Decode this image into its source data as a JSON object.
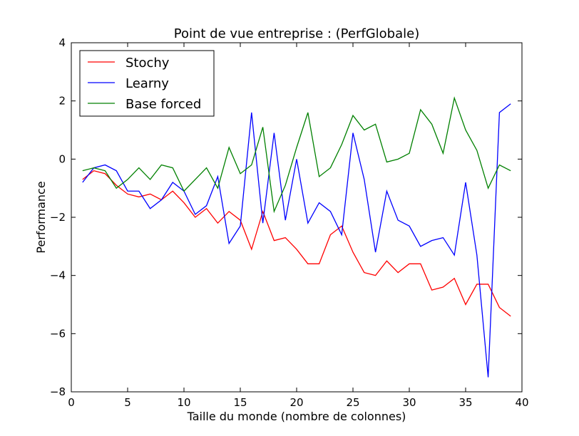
{
  "chart_data": {
    "type": "line",
    "title": "Point de vue entreprise : (PerfGlobale)",
    "xlabel": "Taille du monde (nombre de colonnes)",
    "ylabel": "Performance",
    "xlim": [
      0,
      40
    ],
    "ylim": [
      -8,
      4
    ],
    "xticks": [
      0,
      5,
      10,
      15,
      20,
      25,
      30,
      35,
      40
    ],
    "yticks": [
      -8,
      -6,
      -4,
      -2,
      0,
      2,
      4
    ],
    "grid": false,
    "legend_position": "top-left",
    "x": [
      1,
      2,
      3,
      4,
      5,
      6,
      7,
      8,
      9,
      10,
      11,
      12,
      13,
      14,
      15,
      16,
      17,
      18,
      19,
      20,
      21,
      22,
      23,
      24,
      25,
      26,
      27,
      28,
      29,
      30,
      31,
      32,
      33,
      34,
      35,
      36,
      37,
      38,
      39
    ],
    "series": [
      {
        "name": "Stochy",
        "color": "#ff0000",
        "values": [
          -0.7,
          -0.4,
          -0.5,
          -0.9,
          -1.2,
          -1.3,
          -1.2,
          -1.4,
          -1.1,
          -1.5,
          -2.0,
          -1.7,
          -2.2,
          -1.8,
          -2.1,
          -3.1,
          -1.8,
          -2.8,
          -2.7,
          -3.1,
          -3.6,
          -3.6,
          -2.6,
          -2.3,
          -3.2,
          -3.9,
          -4.0,
          -3.5,
          -3.9,
          -3.6,
          -3.6,
          -4.5,
          -4.4,
          -4.1,
          -5.0,
          -4.3,
          -4.3,
          -5.1,
          -5.4
        ]
      },
      {
        "name": "Learny",
        "color": "#0000ff",
        "values": [
          -0.8,
          -0.3,
          -0.2,
          -0.4,
          -1.1,
          -1.1,
          -1.7,
          -1.4,
          -0.8,
          -1.1,
          -1.9,
          -1.6,
          -0.6,
          -2.9,
          -2.3,
          1.6,
          -2.2,
          0.9,
          -2.1,
          0.0,
          -2.2,
          -1.5,
          -1.8,
          -2.6,
          0.9,
          -0.7,
          -3.2,
          -1.1,
          -2.1,
          -2.3,
          -3.0,
          -2.8,
          -2.7,
          -3.3,
          -0.8,
          -3.3,
          -7.5,
          1.6,
          1.9
        ]
      },
      {
        "name": "Base forced",
        "color": "#008000",
        "values": [
          -0.4,
          -0.3,
          -0.4,
          -1.0,
          -0.7,
          -0.3,
          -0.7,
          -0.2,
          -0.3,
          -1.1,
          -0.7,
          -0.3,
          -1.0,
          0.4,
          -0.5,
          -0.2,
          1.1,
          -1.8,
          -0.9,
          0.4,
          1.6,
          -0.6,
          -0.3,
          0.5,
          1.5,
          1.0,
          1.2,
          -0.1,
          0.0,
          0.2,
          1.7,
          1.2,
          0.2,
          2.1,
          1.0,
          0.3,
          -1.0,
          -0.2,
          -0.4
        ]
      }
    ]
  }
}
